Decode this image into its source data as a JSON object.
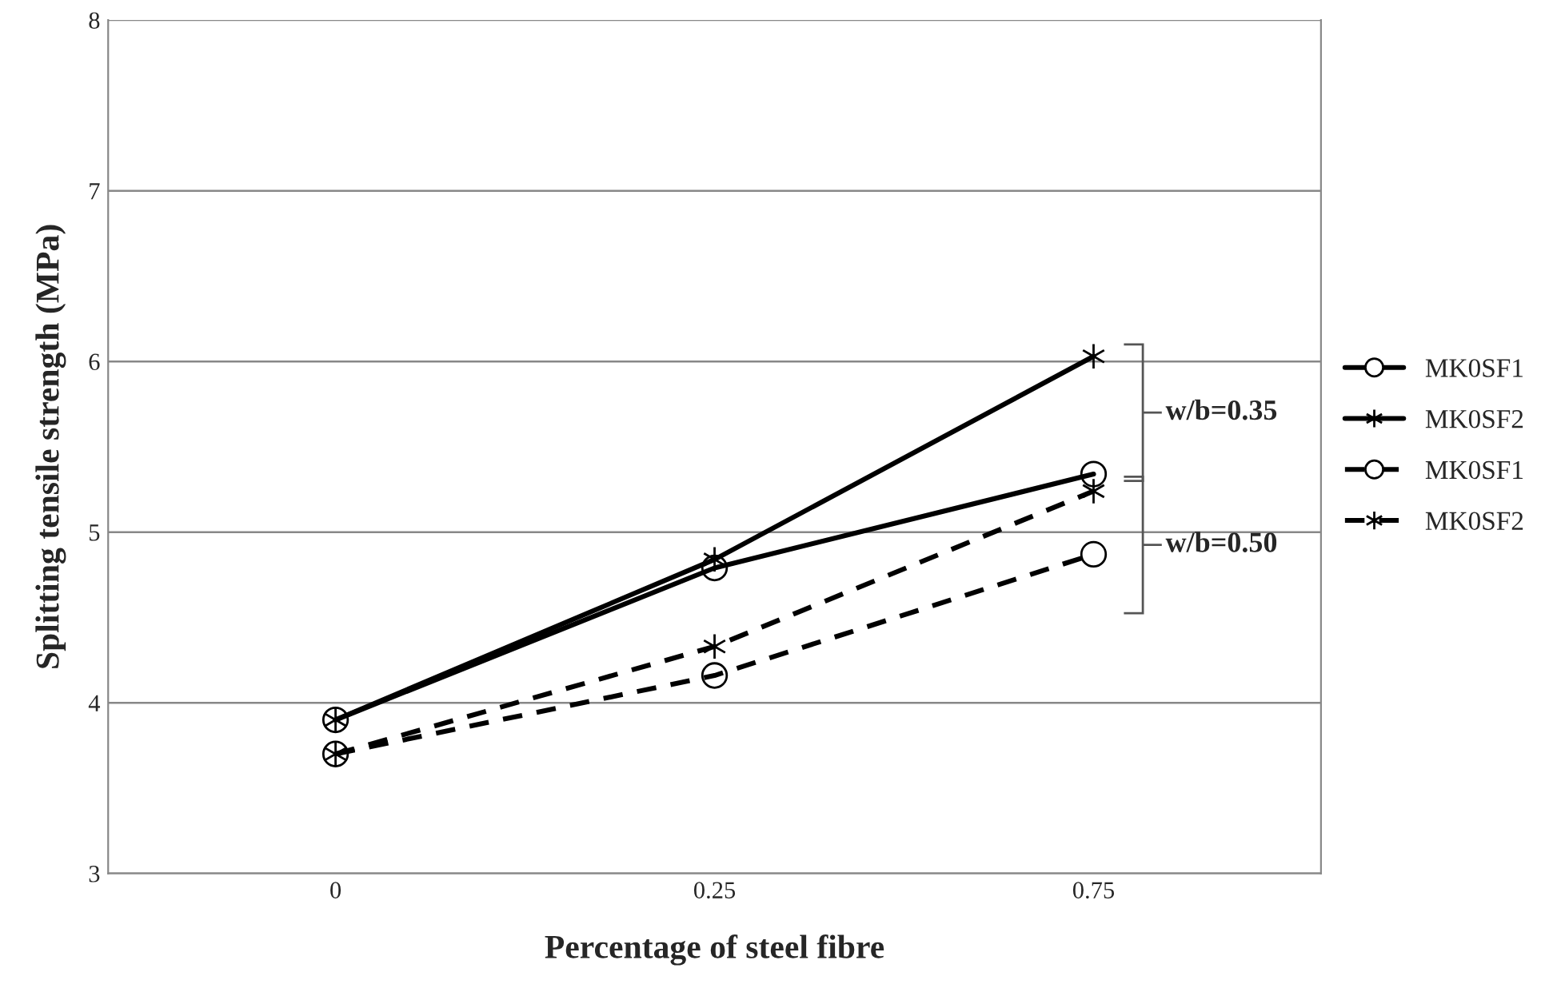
{
  "chart_data": {
    "type": "line",
    "xlabel": "Percentage of steel fibre",
    "ylabel": "Splitting tensile strength (MPa)",
    "categories": [
      "0",
      "0.25",
      "0.75"
    ],
    "series": [
      {
        "name": "MK0SF1",
        "color": "#000000",
        "marker": "circle",
        "line_style": "solid",
        "values": [
          3.9,
          4.79,
          5.34
        ]
      },
      {
        "name": "MK0SF2",
        "color": "#000000",
        "marker": "cross",
        "line_style": "solid",
        "values": [
          3.9,
          4.84,
          6.03
        ]
      },
      {
        "name": "MK0SF1",
        "color": "#000000",
        "marker": "circle",
        "line_style": "dashed",
        "values": [
          3.7,
          4.16,
          4.87
        ]
      },
      {
        "name": "MK0SF2",
        "color": "#000000",
        "marker": "cross",
        "line_style": "dashed",
        "values": [
          3.7,
          4.33,
          5.24
        ]
      }
    ],
    "annotations": [
      "w/b=0.35",
      "w/b=0.50"
    ],
    "ylim": [
      3,
      8
    ],
    "yticks": [
      3,
      4,
      5,
      6,
      7,
      8
    ],
    "grid": "y",
    "legend": "right"
  }
}
